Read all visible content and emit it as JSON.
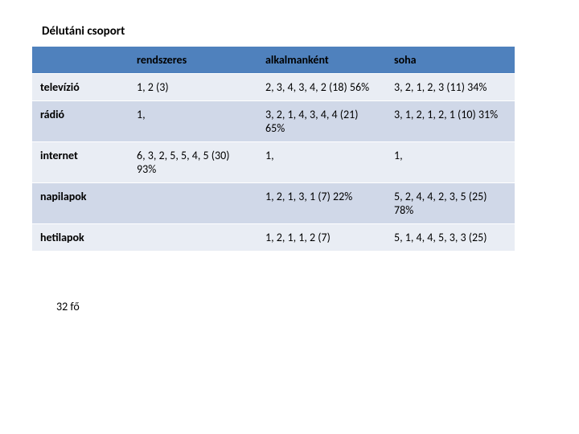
{
  "title": "Délutáni csoport",
  "table": {
    "columns": [
      "",
      "rendszeres",
      "alkalmanként",
      "soha"
    ],
    "rows": [
      {
        "label": "televízió",
        "cells": [
          "1, 2 (3)",
          "2, 3, 4, 3, 4, 2 (18) 56%",
          "3, 2, 1, 2, 3 (11) 34%"
        ]
      },
      {
        "label": "rádió",
        "cells": [
          "1,",
          "3, 2, 1, 4, 3, 4, 4 (21) 65%",
          "3, 1, 2, 1, 2, 1 (10) 31%"
        ]
      },
      {
        "label": "internet",
        "cells": [
          "6, 3, 2, 5, 5, 4, 5 (30) 93%",
          "1,",
          "1,"
        ]
      },
      {
        "label": "napilapok",
        "cells": [
          "",
          "1, 2, 1, 3, 1 (7) 22%",
          "5, 2, 4, 4, 2, 3, 5 (25) 78%"
        ]
      },
      {
        "label": "hetilapok",
        "cells": [
          "",
          "1, 2, 1, 1, 2 (7)",
          "5, 1, 4, 4, 5, 3, 3 (25)"
        ]
      }
    ]
  },
  "footer": "32 fő",
  "colors": {
    "header_bg": "#4f81bd",
    "row_odd": "#e9edf4",
    "row_even": "#d0d8e8",
    "text": "#000000",
    "background": "#ffffff"
  }
}
